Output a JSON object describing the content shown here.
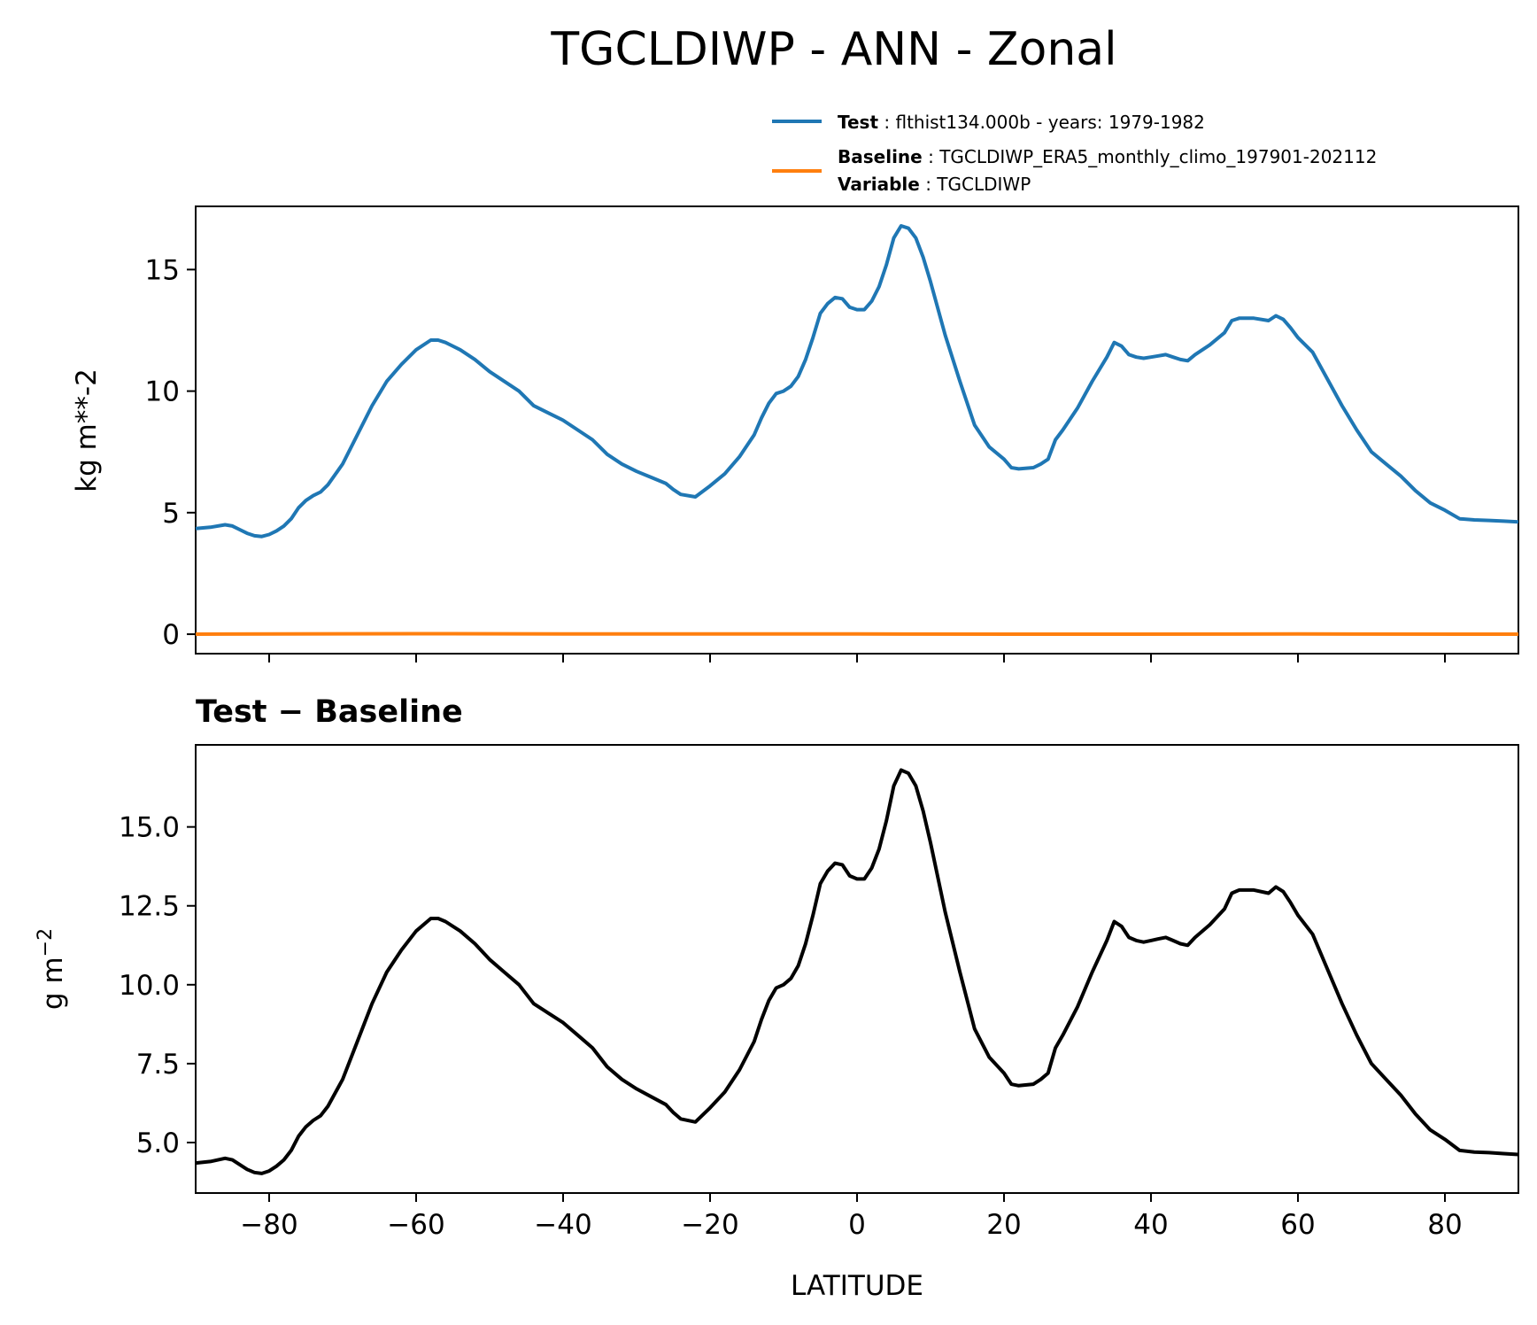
{
  "title": "TGCLDIWP - ANN - Zonal",
  "legend": {
    "test_key": "Test",
    "test_value": "flthist134.000b - years: 1979-1982",
    "baseline_key": "Baseline",
    "baseline_value": "TGCLDIWP_ERA5_monthly_climo_197901-202112",
    "variable_key": "Variable",
    "variable_value": "TGCLDIWP"
  },
  "colors": {
    "test": "#1f77b4",
    "baseline": "#ff7f0e",
    "difference": "#000000"
  },
  "chart_data": [
    {
      "type": "line",
      "panel": "top",
      "xlabel": "",
      "ylabel": "kg m**-2",
      "xlim": [
        -90,
        90
      ],
      "ylim": [
        -0.8,
        17.6
      ],
      "xticks": [
        -80,
        -60,
        -40,
        -20,
        0,
        20,
        40,
        60,
        80
      ],
      "yticks": [
        0,
        5,
        10,
        15
      ],
      "ytick_labels": [
        "0",
        "5",
        "10",
        "15"
      ],
      "series": [
        {
          "name": "Test",
          "color": "#1f77b4",
          "x": [
            -90,
            -88,
            -86,
            -85,
            -84,
            -83,
            -82,
            -81,
            -80,
            -79,
            -78,
            -77,
            -76,
            -75,
            -74,
            -73,
            -72,
            -70,
            -68,
            -66,
            -64,
            -62,
            -60,
            -58,
            -57,
            -56,
            -54,
            -52,
            -50,
            -48,
            -46,
            -44,
            -42,
            -40,
            -38,
            -36,
            -34,
            -32,
            -30,
            -28,
            -26,
            -25,
            -24,
            -22,
            -20,
            -18,
            -16,
            -14,
            -13,
            -12,
            -11,
            -10,
            -9,
            -8,
            -7,
            -6,
            -5,
            -4,
            -3,
            -2,
            -1,
            0,
            1,
            2,
            3,
            4,
            5,
            6,
            7,
            8,
            9,
            10,
            12,
            14,
            16,
            18,
            20,
            21,
            22,
            24,
            25,
            26,
            27,
            28,
            30,
            32,
            34,
            35,
            36,
            37,
            38,
            39,
            40,
            41,
            42,
            43,
            44,
            45,
            46,
            48,
            50,
            51,
            52,
            54,
            56,
            57,
            58,
            59,
            60,
            62,
            64,
            66,
            68,
            70,
            72,
            74,
            76,
            78,
            80,
            82,
            84,
            86,
            88,
            90
          ],
          "values": [
            4.35,
            4.4,
            4.5,
            4.45,
            4.3,
            4.15,
            4.05,
            4.02,
            4.1,
            4.25,
            4.45,
            4.75,
            5.2,
            5.5,
            5.7,
            5.85,
            6.15,
            7.0,
            8.2,
            9.4,
            10.4,
            11.1,
            11.7,
            12.1,
            12.1,
            12.0,
            11.7,
            11.3,
            10.8,
            10.4,
            10.0,
            9.4,
            9.1,
            8.8,
            8.4,
            8.0,
            7.4,
            7.0,
            6.7,
            6.45,
            6.2,
            5.95,
            5.75,
            5.65,
            6.1,
            6.6,
            7.3,
            8.2,
            8.9,
            9.5,
            9.9,
            10.0,
            10.2,
            10.6,
            11.3,
            12.2,
            13.2,
            13.6,
            13.85,
            13.8,
            13.45,
            13.35,
            13.35,
            13.7,
            14.3,
            15.2,
            16.3,
            16.8,
            16.7,
            16.3,
            15.5,
            14.5,
            12.3,
            10.4,
            8.6,
            7.7,
            7.2,
            6.85,
            6.8,
            6.85,
            7.0,
            7.2,
            8.0,
            8.4,
            9.3,
            10.4,
            11.4,
            12.0,
            11.85,
            11.5,
            11.4,
            11.35,
            11.4,
            11.45,
            11.5,
            11.4,
            11.3,
            11.25,
            11.5,
            11.9,
            12.4,
            12.9,
            13.0,
            13.0,
            12.9,
            13.1,
            12.95,
            12.6,
            12.2,
            11.6,
            10.5,
            9.4,
            8.4,
            7.5,
            7.0,
            6.5,
            5.9,
            5.4,
            5.1,
            4.75,
            4.7,
            4.68,
            4.65,
            4.62
          ]
        },
        {
          "name": "Baseline",
          "color": "#ff7f0e",
          "x": [
            -90,
            -60,
            -30,
            0,
            30,
            60,
            90
          ],
          "values": [
            0.0,
            0.02,
            0.01,
            0.01,
            0.0,
            0.01,
            0.0
          ]
        }
      ]
    },
    {
      "type": "line",
      "panel": "bottom",
      "title": "Test − Baseline",
      "xlabel": "LATITUDE",
      "ylabel": "g m⁻²",
      "ylabel_base": "g m",
      "ylabel_sup": "−2",
      "xlim": [
        -90,
        90
      ],
      "ylim": [
        3.4,
        17.6
      ],
      "xticks": [
        -80,
        -60,
        -40,
        -20,
        0,
        20,
        40,
        60,
        80
      ],
      "xtick_labels": [
        "−80",
        "−60",
        "−40",
        "−20",
        "0",
        "20",
        "40",
        "60",
        "80"
      ],
      "yticks": [
        5.0,
        7.5,
        10.0,
        12.5,
        15.0
      ],
      "ytick_labels": [
        "5.0",
        "7.5",
        "10.0",
        "12.5",
        "15.0"
      ],
      "series": [
        {
          "name": "Test − Baseline",
          "color": "#000000",
          "x": [
            -90,
            -88,
            -86,
            -85,
            -84,
            -83,
            -82,
            -81,
            -80,
            -79,
            -78,
            -77,
            -76,
            -75,
            -74,
            -73,
            -72,
            -70,
            -68,
            -66,
            -64,
            -62,
            -60,
            -58,
            -57,
            -56,
            -54,
            -52,
            -50,
            -48,
            -46,
            -44,
            -42,
            -40,
            -38,
            -36,
            -34,
            -32,
            -30,
            -28,
            -26,
            -25,
            -24,
            -22,
            -20,
            -18,
            -16,
            -14,
            -13,
            -12,
            -11,
            -10,
            -9,
            -8,
            -7,
            -6,
            -5,
            -4,
            -3,
            -2,
            -1,
            0,
            1,
            2,
            3,
            4,
            5,
            6,
            7,
            8,
            9,
            10,
            12,
            14,
            16,
            18,
            20,
            21,
            22,
            24,
            25,
            26,
            27,
            28,
            30,
            32,
            34,
            35,
            36,
            37,
            38,
            39,
            40,
            41,
            42,
            43,
            44,
            45,
            46,
            48,
            50,
            51,
            52,
            54,
            56,
            57,
            58,
            59,
            60,
            62,
            64,
            66,
            68,
            70,
            72,
            74,
            76,
            78,
            80,
            82,
            84,
            86,
            88,
            90
          ],
          "values": [
            4.35,
            4.4,
            4.5,
            4.45,
            4.3,
            4.15,
            4.05,
            4.02,
            4.1,
            4.25,
            4.45,
            4.75,
            5.2,
            5.5,
            5.7,
            5.85,
            6.15,
            7.0,
            8.2,
            9.4,
            10.4,
            11.1,
            11.7,
            12.1,
            12.1,
            12.0,
            11.7,
            11.3,
            10.8,
            10.4,
            10.0,
            9.4,
            9.1,
            8.8,
            8.4,
            8.0,
            7.4,
            7.0,
            6.7,
            6.45,
            6.2,
            5.95,
            5.75,
            5.65,
            6.1,
            6.6,
            7.3,
            8.2,
            8.9,
            9.5,
            9.9,
            10.0,
            10.2,
            10.6,
            11.3,
            12.2,
            13.2,
            13.6,
            13.85,
            13.8,
            13.45,
            13.35,
            13.35,
            13.7,
            14.3,
            15.2,
            16.3,
            16.8,
            16.7,
            16.3,
            15.5,
            14.5,
            12.3,
            10.4,
            8.6,
            7.7,
            7.2,
            6.85,
            6.8,
            6.85,
            7.0,
            7.2,
            8.0,
            8.4,
            9.3,
            10.4,
            11.4,
            12.0,
            11.85,
            11.5,
            11.4,
            11.35,
            11.4,
            11.45,
            11.5,
            11.4,
            11.3,
            11.25,
            11.5,
            11.9,
            12.4,
            12.9,
            13.0,
            13.0,
            12.9,
            13.1,
            12.95,
            12.6,
            12.2,
            11.6,
            10.5,
            9.4,
            8.4,
            7.5,
            7.0,
            6.5,
            5.9,
            5.4,
            5.1,
            4.75,
            4.7,
            4.68,
            4.65,
            4.62
          ]
        }
      ]
    }
  ]
}
